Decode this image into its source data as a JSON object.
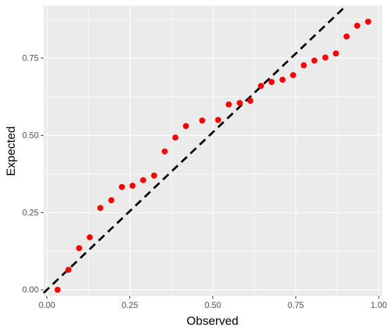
{
  "chart_data": {
    "type": "scatter",
    "title": "",
    "xlabel": "Observed",
    "ylabel": "Expected",
    "xlim": [
      -0.01,
      1.01
    ],
    "ylim": [
      -0.02,
      0.92
    ],
    "x_ticks": [
      0.0,
      0.25,
      0.5,
      0.75,
      1.0
    ],
    "x_tick_labels": [
      "0.00",
      "0.25",
      "0.50",
      "0.75",
      "1.00"
    ],
    "y_ticks": [
      0.0,
      0.25,
      0.5,
      0.75
    ],
    "y_tick_labels": [
      "0.00",
      "0.25",
      "0.50",
      "0.75"
    ],
    "grid": true,
    "legend": "none",
    "reference_line": {
      "style": "dashed",
      "color": "#000000",
      "slope": 1.02,
      "intercept": 0.0
    },
    "point_color": "#ff0000",
    "panel_background": "#ebebeb",
    "grid_color": "#ffffff",
    "series": [
      {
        "x": [
          0.032,
          0.065,
          0.097,
          0.129,
          0.161,
          0.194,
          0.226,
          0.258,
          0.29,
          0.323,
          0.355,
          0.387,
          0.419,
          0.468,
          0.516,
          0.548,
          0.581,
          0.613,
          0.645,
          0.677,
          0.71,
          0.742,
          0.774,
          0.806,
          0.839,
          0.871,
          0.903,
          0.935,
          0.968
        ],
        "y": [
          0.0,
          0.065,
          0.135,
          0.17,
          0.265,
          0.29,
          0.333,
          0.337,
          0.355,
          0.37,
          0.448,
          0.493,
          0.53,
          0.548,
          0.55,
          0.6,
          0.605,
          0.612,
          0.66,
          0.673,
          0.68,
          0.695,
          0.727,
          0.742,
          0.752,
          0.765,
          0.82,
          0.855,
          0.868
        ]
      }
    ]
  }
}
